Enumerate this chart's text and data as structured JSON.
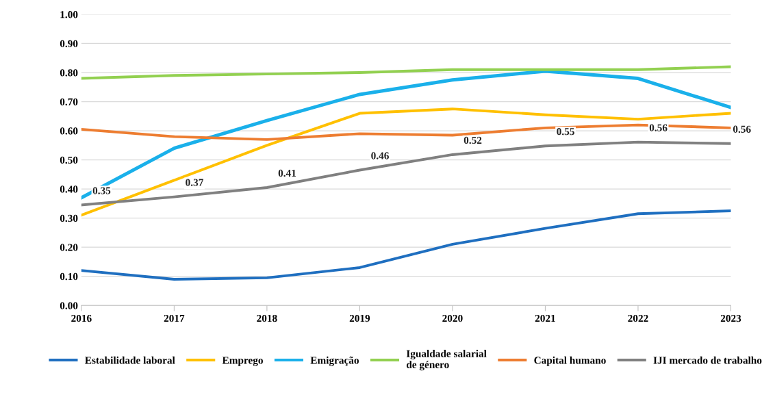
{
  "chart_data": {
    "type": "line",
    "categories": [
      "2016",
      "2017",
      "2018",
      "2019",
      "2020",
      "2021",
      "2022",
      "2023"
    ],
    "ylim": [
      0,
      1
    ],
    "yticks": [
      "0.00",
      "0.10",
      "0.20",
      "0.30",
      "0.40",
      "0.50",
      "0.60",
      "0.70",
      "0.80",
      "0.90",
      "1.00"
    ],
    "grid": "y",
    "legend": "bottom",
    "marker": "none",
    "line_style": "solid",
    "series": [
      {
        "name": "Estabilidade laboral",
        "color": "#1f6fc0",
        "values": [
          0.12,
          0.09,
          0.095,
          0.13,
          0.21,
          0.265,
          0.315,
          0.325
        ]
      },
      {
        "name": "Emprego",
        "color": "#ffc000",
        "values": [
          0.31,
          0.43,
          0.55,
          0.66,
          0.675,
          0.655,
          0.64,
          0.66
        ]
      },
      {
        "name": "Emigração",
        "color": "#1ab0ea",
        "values": [
          0.37,
          0.54,
          0.635,
          0.725,
          0.775,
          0.805,
          0.78,
          0.68
        ]
      },
      {
        "name": "Igualdade salarial\nde género",
        "color": "#92d050",
        "values": [
          0.78,
          0.79,
          0.795,
          0.8,
          0.81,
          0.81,
          0.81,
          0.82
        ]
      },
      {
        "name": "Capital humano",
        "color": "#ed7d31",
        "values": [
          0.605,
          0.58,
          0.57,
          0.59,
          0.585,
          0.61,
          0.62,
          0.61
        ]
      },
      {
        "name": "IJI mercado de trabalho",
        "color": "#808080",
        "values": [
          0.345,
          0.373,
          0.405,
          0.465,
          0.518,
          0.548,
          0.561,
          0.556
        ],
        "value_labels": [
          "0.35",
          "0.37",
          "0.41",
          "0.46",
          "0.52",
          "0.55",
          "0.56",
          "0.56"
        ]
      }
    ]
  }
}
